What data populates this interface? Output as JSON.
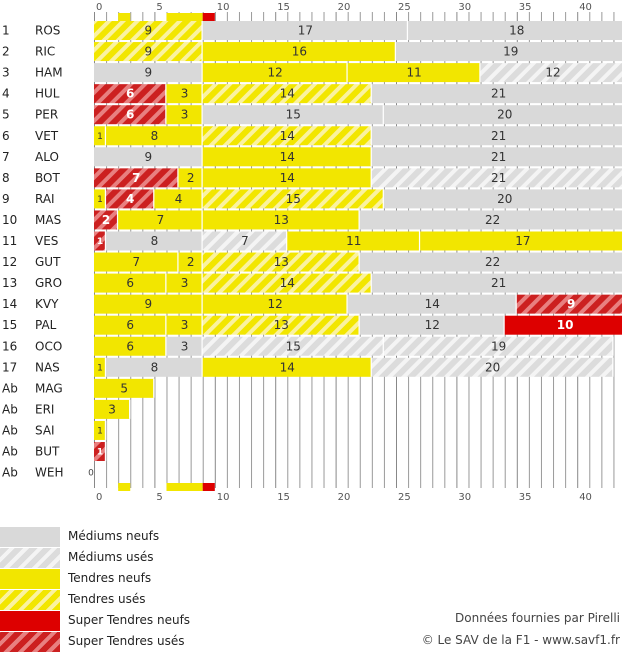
{
  "chart_data": {
    "type": "bar",
    "orientation": "horizontal-stacked",
    "x_ticks": [
      0,
      5,
      10,
      15,
      20,
      25,
      30,
      35,
      40
    ],
    "xlim": [
      0,
      44
    ],
    "legend": [
      {
        "key": "MN",
        "label": "Médiums neufs"
      },
      {
        "key": "MU",
        "label": "Médiums usés"
      },
      {
        "key": "TN",
        "label": "Tendres neufs"
      },
      {
        "key": "TU",
        "label": "Tendres usés"
      },
      {
        "key": "SN",
        "label": "Super Tendres neufs"
      },
      {
        "key": "SU",
        "label": "Super Tendres usés"
      }
    ],
    "colors": {
      "MN": "#d9d9d9",
      "MU": "#e6e6e6",
      "TN": "#f2e600",
      "TU": "#f7ee62",
      "SN": "#dd0000",
      "SU": "#cc3333"
    },
    "top_strip": [
      {
        "start": 2,
        "end": 3,
        "key": "TN"
      },
      {
        "start": 6,
        "end": 9,
        "key": "TN"
      },
      {
        "start": 9,
        "end": 10,
        "key": "SN"
      }
    ],
    "rows": [
      {
        "pos": "1",
        "driver": "ROS",
        "stints": [
          {
            "len": 9,
            "key": "TU"
          },
          {
            "len": 17,
            "key": "MN"
          },
          {
            "len": 18,
            "key": "MN"
          }
        ]
      },
      {
        "pos": "2",
        "driver": "RIC",
        "stints": [
          {
            "len": 9,
            "key": "TU"
          },
          {
            "len": 16,
            "key": "TN"
          },
          {
            "len": 19,
            "key": "MN"
          }
        ]
      },
      {
        "pos": "3",
        "driver": "HAM",
        "stints": [
          {
            "len": 9,
            "key": "MN"
          },
          {
            "len": 12,
            "key": "TN"
          },
          {
            "len": 11,
            "key": "TN"
          },
          {
            "len": 12,
            "key": "MU"
          }
        ]
      },
      {
        "pos": "4",
        "driver": "HUL",
        "stints": [
          {
            "len": 6,
            "key": "SU"
          },
          {
            "len": 3,
            "key": "TN"
          },
          {
            "len": 14,
            "key": "TU"
          },
          {
            "len": 21,
            "key": "MN"
          }
        ]
      },
      {
        "pos": "5",
        "driver": "PER",
        "stints": [
          {
            "len": 6,
            "key": "SU"
          },
          {
            "len": 3,
            "key": "TN"
          },
          {
            "len": 15,
            "key": "MN"
          },
          {
            "len": 20,
            "key": "MN"
          }
        ]
      },
      {
        "pos": "6",
        "driver": "VET",
        "stints": [
          {
            "len": 1,
            "key": "TN"
          },
          {
            "len": 8,
            "key": "TN"
          },
          {
            "len": 14,
            "key": "TU"
          },
          {
            "len": 21,
            "key": "MN"
          }
        ]
      },
      {
        "pos": "7",
        "driver": "ALO",
        "stints": [
          {
            "len": 9,
            "key": "MN"
          },
          {
            "len": 14,
            "key": "TN"
          },
          {
            "len": 21,
            "key": "MN"
          }
        ]
      },
      {
        "pos": "8",
        "driver": "BOT",
        "stints": [
          {
            "len": 7,
            "key": "SU"
          },
          {
            "len": 2,
            "key": "TN"
          },
          {
            "len": 14,
            "key": "TN"
          },
          {
            "len": 21,
            "key": "MU"
          }
        ]
      },
      {
        "pos": "9",
        "driver": "RAI",
        "stints": [
          {
            "len": 1,
            "key": "TN"
          },
          {
            "len": 4,
            "key": "SU"
          },
          {
            "len": 4,
            "key": "TN"
          },
          {
            "len": 15,
            "key": "TU"
          },
          {
            "len": 20,
            "key": "MN"
          }
        ]
      },
      {
        "pos": "10",
        "driver": "MAS",
        "stints": [
          {
            "len": 2,
            "key": "SU"
          },
          {
            "len": 7,
            "key": "TN"
          },
          {
            "len": 13,
            "key": "TN"
          },
          {
            "len": 22,
            "key": "MN"
          }
        ]
      },
      {
        "pos": "11",
        "driver": "VES",
        "stints": [
          {
            "len": 1,
            "key": "SU"
          },
          {
            "len": 8,
            "key": "MN"
          },
          {
            "len": 7,
            "key": "MU"
          },
          {
            "len": 11,
            "key": "TN"
          },
          {
            "len": 17,
            "key": "TN"
          }
        ]
      },
      {
        "pos": "12",
        "driver": "GUT",
        "stints": [
          {
            "len": 7,
            "key": "TN"
          },
          {
            "len": 2,
            "key": "TN"
          },
          {
            "len": 13,
            "key": "TU"
          },
          {
            "len": 22,
            "key": "MN"
          }
        ]
      },
      {
        "pos": "13",
        "driver": "GRO",
        "stints": [
          {
            "len": 6,
            "key": "TN"
          },
          {
            "len": 3,
            "key": "TN"
          },
          {
            "len": 14,
            "key": "TU"
          },
          {
            "len": 21,
            "key": "MN"
          }
        ]
      },
      {
        "pos": "14",
        "driver": "KVY",
        "stints": [
          {
            "len": 9,
            "key": "TN"
          },
          {
            "len": 12,
            "key": "TN"
          },
          {
            "len": 14,
            "key": "MN"
          },
          {
            "len": 9,
            "key": "SU"
          }
        ]
      },
      {
        "pos": "15",
        "driver": "PAL",
        "stints": [
          {
            "len": 6,
            "key": "TN"
          },
          {
            "len": 3,
            "key": "TN"
          },
          {
            "len": 13,
            "key": "TU"
          },
          {
            "len": 12,
            "key": "MN"
          },
          {
            "len": 10,
            "key": "SN"
          }
        ]
      },
      {
        "pos": "16",
        "driver": "OCO",
        "stints": [
          {
            "len": 6,
            "key": "TN"
          },
          {
            "len": 3,
            "key": "MN"
          },
          {
            "len": 15,
            "key": "MU"
          },
          {
            "len": 19,
            "key": "MU"
          }
        ]
      },
      {
        "pos": "17",
        "driver": "NAS",
        "stints": [
          {
            "len": 1,
            "key": "TN"
          },
          {
            "len": 8,
            "key": "MN"
          },
          {
            "len": 14,
            "key": "TN"
          },
          {
            "len": 20,
            "key": "MU"
          }
        ]
      },
      {
        "pos": "Ab",
        "driver": "MAG",
        "stints": [
          {
            "len": 5,
            "key": "TN"
          }
        ]
      },
      {
        "pos": "Ab",
        "driver": "ERI",
        "stints": [
          {
            "len": 3,
            "key": "TN"
          }
        ]
      },
      {
        "pos": "Ab",
        "driver": "SAI",
        "stints": [
          {
            "len": 1,
            "key": "TN"
          }
        ]
      },
      {
        "pos": "Ab",
        "driver": "BUT",
        "stints": [
          {
            "len": 1,
            "key": "SU"
          }
        ]
      },
      {
        "pos": "Ab",
        "driver": "WEH",
        "stints": [
          {
            "len": 0,
            "key": "MN"
          }
        ]
      }
    ]
  },
  "credits": {
    "source": "Données fournies par Pirelli",
    "copyright": "© Le SAV de la F1 - www.savf1.fr"
  }
}
